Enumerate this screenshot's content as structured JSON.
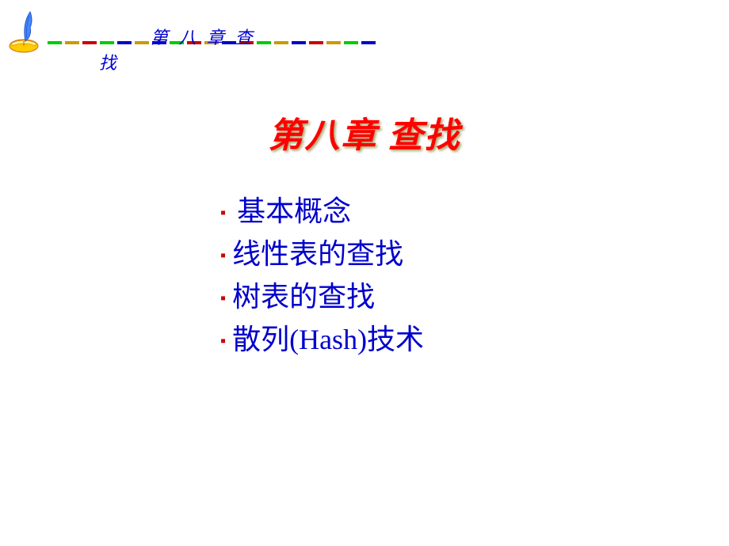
{
  "header": {
    "text_top": "第  八    章              查",
    "text_bottom": "找",
    "dash_colors": [
      "#00cc00",
      "#cc9900",
      "#cc0000",
      "#00cc00",
      "#0000cc",
      "#cc9900",
      "#0000cc",
      "#00cc00",
      "#cc0000",
      "#cc9900",
      "#0000cc",
      "#cc0000",
      "#00cc00",
      "#cc9900",
      "#0000cc",
      "#cc0000",
      "#cc9900",
      "#00cc00",
      "#0000cc"
    ]
  },
  "title": "第八章   查找",
  "list": {
    "items": [
      " 基本概念",
      "线性表的查找",
      "树表的查找",
      "散列(Hash)技术"
    ]
  },
  "colors": {
    "title_color": "#ff0000",
    "text_color": "#0000cc",
    "bullet_color": "#cc0000",
    "background": "#ffffff"
  },
  "typography": {
    "title_fontsize": 44,
    "list_fontsize": 36,
    "header_fontsize": 22
  }
}
